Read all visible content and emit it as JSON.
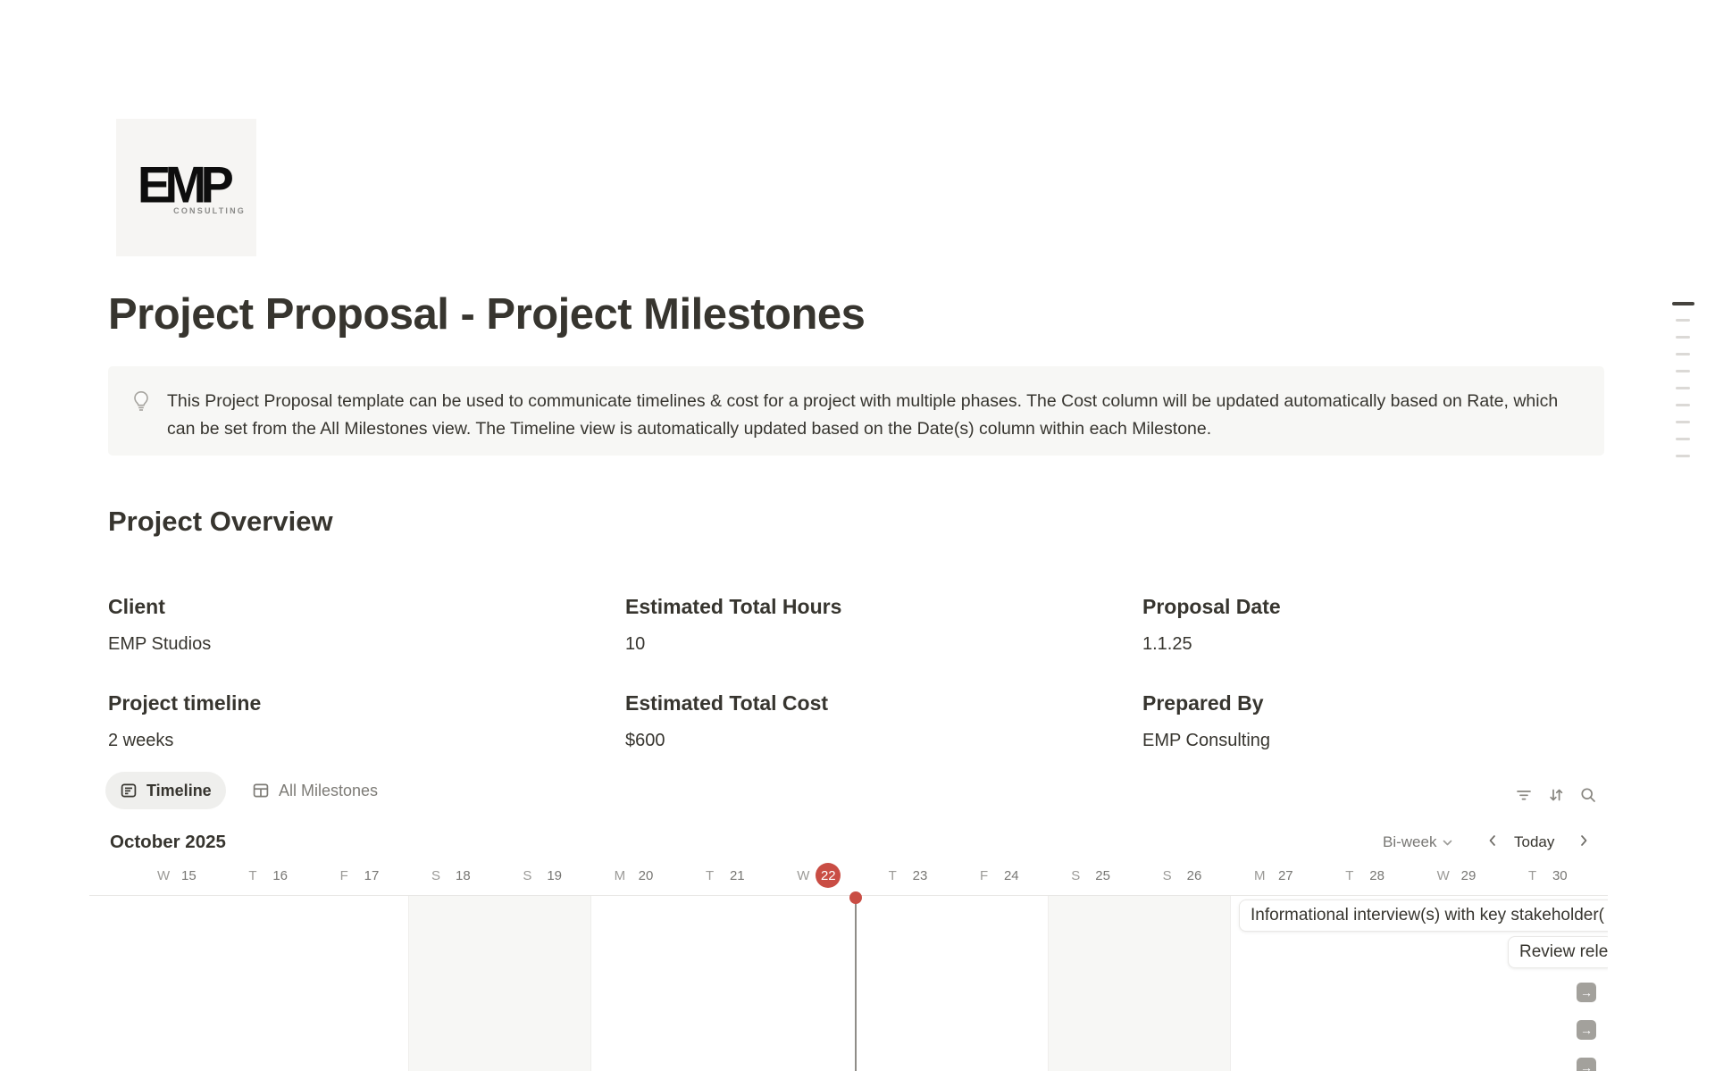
{
  "logo": {
    "text": "EMP",
    "subtext": "CONSULTING"
  },
  "page": {
    "title": "Project Proposal - Project Milestones"
  },
  "callout": {
    "icon": "light-bulb",
    "text": "This Project Proposal template can be used to communicate timelines & cost for a project with multiple phases. The Cost column will be updated automatically based on Rate, which can be set from the All Milestones view. The Timeline view is automatically updated based on the Date(s) column within each Milestone."
  },
  "overview": {
    "heading": "Project Overview",
    "fields": [
      {
        "label": "Client",
        "value": "EMP Studios"
      },
      {
        "label": "Estimated Total Hours",
        "value": "10"
      },
      {
        "label": "Proposal Date",
        "value": "1.1.25"
      },
      {
        "label": "Project timeline",
        "value": "2 weeks"
      },
      {
        "label": "Estimated Total Cost",
        "value": "$600"
      },
      {
        "label": "Prepared By",
        "value": "EMP Consulting"
      }
    ]
  },
  "views": {
    "tabs": [
      {
        "label": "Timeline",
        "icon": "timeline-icon",
        "active": true
      },
      {
        "label": "All Milestones",
        "icon": "table-icon",
        "active": false
      }
    ],
    "toolbar_icons": [
      "filter-icon",
      "sort-icon",
      "search-icon"
    ]
  },
  "timeline": {
    "month_label": "October 2025",
    "zoom_level": "Bi-week",
    "today_label": "Today",
    "days": [
      {
        "letter": "W",
        "number": "15"
      },
      {
        "letter": "T",
        "number": "16"
      },
      {
        "letter": "F",
        "number": "17"
      },
      {
        "letter": "S",
        "number": "18",
        "weekend": true
      },
      {
        "letter": "S",
        "number": "19",
        "weekend": true
      },
      {
        "letter": "M",
        "number": "20"
      },
      {
        "letter": "T",
        "number": "21"
      },
      {
        "letter": "W",
        "number": "22",
        "today": true
      },
      {
        "letter": "T",
        "number": "23"
      },
      {
        "letter": "F",
        "number": "24"
      },
      {
        "letter": "S",
        "number": "25",
        "weekend": true
      },
      {
        "letter": "S",
        "number": "26",
        "weekend": true
      },
      {
        "letter": "M",
        "number": "27"
      },
      {
        "letter": "T",
        "number": "28"
      },
      {
        "letter": "W",
        "number": "29"
      },
      {
        "letter": "T",
        "number": "30"
      }
    ],
    "bars": [
      {
        "label": "Informational interview(s) with key stakeholder("
      },
      {
        "label": "Review relev"
      }
    ],
    "offscreen_indicator_count": 3,
    "accent_red": "#c94d44"
  },
  "outline": {
    "dash_count": 9
  }
}
